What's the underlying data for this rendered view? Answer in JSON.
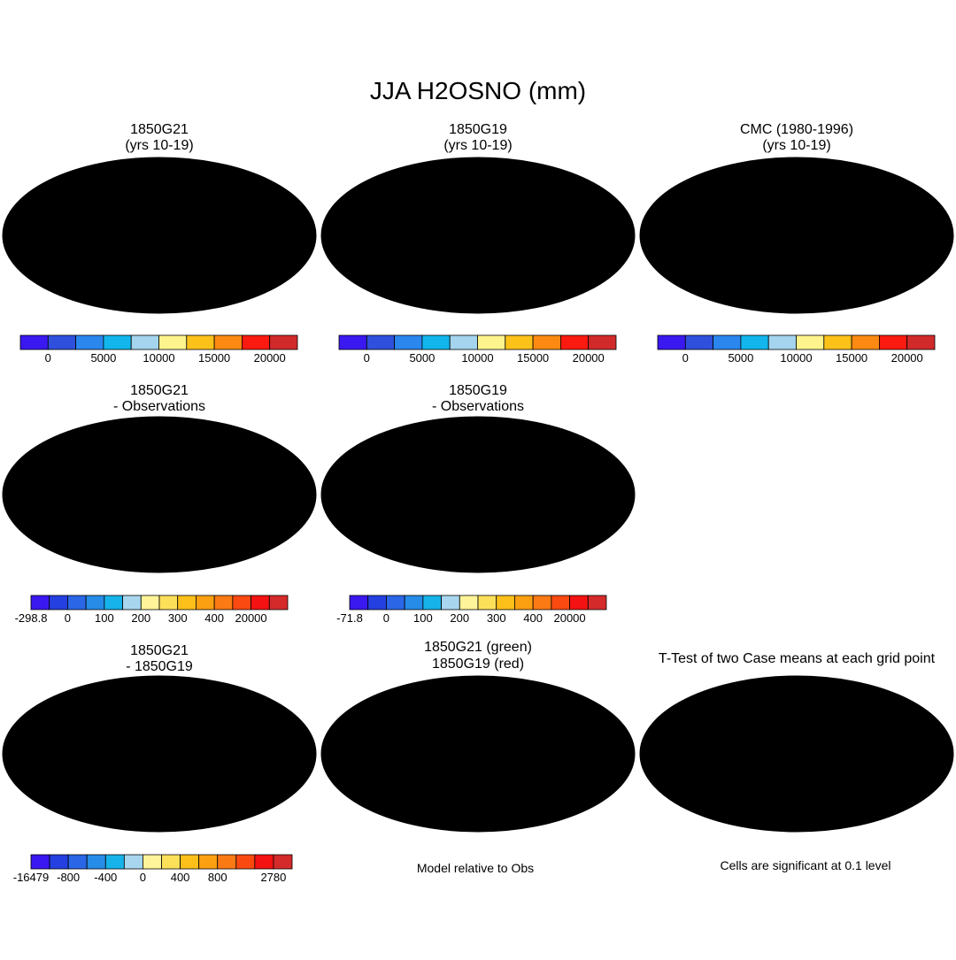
{
  "page_title": "JJA H2OSNO (mm)",
  "colors": {
    "ocean": "#ffffff",
    "land_outline": "#000000",
    "blue_fill": "#3355dd",
    "red_fill": "#d33030",
    "pale_yellow": "#fff4a0",
    "light_blue": "#aed6ec",
    "sig_red": "#ee1111",
    "green": "#22cc22"
  },
  "chart_data": [
    {
      "id": "p1",
      "type": "map",
      "projection": "robinson",
      "title": [
        "1850G21",
        "(yrs 10-19)"
      ],
      "fill": "snow_all",
      "colorbar": "cb_abs"
    },
    {
      "id": "p2",
      "type": "map",
      "projection": "robinson",
      "title": [
        "1850G19",
        "(yrs 10-19)"
      ],
      "fill": "snow_all",
      "colorbar": "cb_abs"
    },
    {
      "id": "p3",
      "type": "map",
      "projection": "robinson",
      "title": [
        "CMC (1980-1996)",
        "(yrs 10-19)"
      ],
      "fill": "north_america_only",
      "colorbar": "cb_abs"
    },
    {
      "id": "p4",
      "type": "map",
      "projection": "robinson",
      "title": [
        "1850G21",
        "- Observations"
      ],
      "fill": "diff_obs",
      "colorbar": "cb_diff1"
    },
    {
      "id": "p5",
      "type": "map",
      "projection": "robinson",
      "title": [
        "1850G19",
        "- Observations"
      ],
      "fill": "diff_obs",
      "colorbar": "cb_diff2"
    },
    {
      "id": "p6",
      "type": "map",
      "projection": "robinson",
      "title": [
        "1850G21",
        "- 1850G19"
      ],
      "fill": "diff_models",
      "colorbar": "cb_diff3"
    },
    {
      "id": "p7",
      "type": "map",
      "projection": "robinson",
      "title": [
        "1850G21 (green)",
        "1850G19 (red)"
      ],
      "fill": "contours",
      "caption": "Model relative to Obs"
    },
    {
      "id": "p8",
      "type": "map",
      "projection": "robinson",
      "title": [
        "T-Test of two Case means at each grid point"
      ],
      "fill": "ttest",
      "caption": "Cells are significant at 0.1 level"
    }
  ],
  "colorbars": {
    "cb_abs": {
      "colors": [
        "#3a18f0",
        "#2f50dd",
        "#2b86ee",
        "#12b6ec",
        "#a4d4ee",
        "#fdf48d",
        "#fdc21a",
        "#fc8a12",
        "#fa1a10",
        "#d12a2a"
      ],
      "labels": [
        "0",
        "5000",
        "10000",
        "15000",
        "20000"
      ],
      "label_boundaries": [
        1,
        3,
        5,
        7,
        9
      ]
    },
    "cb_diff1": {
      "colors": [
        "#3a18f0",
        "#2440e0",
        "#2a66e6",
        "#268ce8",
        "#16b2ea",
        "#a8d6ee",
        "#fff49a",
        "#fde05a",
        "#fdc01a",
        "#fca012",
        "#fb7a14",
        "#fa4a12",
        "#f41212",
        "#d42a2a"
      ],
      "labels": [
        "-298.8",
        "0",
        "100",
        "200",
        "300",
        "400",
        "20000"
      ],
      "label_boundaries": [
        0,
        2,
        4,
        6,
        8,
        10,
        12
      ]
    },
    "cb_diff2": {
      "colors": [
        "#3a18f0",
        "#2440e0",
        "#2a66e6",
        "#268ce8",
        "#16b2ea",
        "#a8d6ee",
        "#fff49a",
        "#fde05a",
        "#fdc01a",
        "#fca012",
        "#fb7a14",
        "#fa4a12",
        "#f41212",
        "#d42a2a"
      ],
      "labels": [
        "-71.8",
        "0",
        "100",
        "200",
        "300",
        "400",
        "20000"
      ],
      "label_boundaries": [
        0,
        2,
        4,
        6,
        8,
        10,
        12
      ]
    },
    "cb_diff3": {
      "colors": [
        "#3a18f0",
        "#2440e0",
        "#2a66e6",
        "#268ce8",
        "#16b2ea",
        "#a8d6ee",
        "#fff49a",
        "#fde05a",
        "#fdc01a",
        "#fca012",
        "#fb7a14",
        "#fa4a12",
        "#f41212",
        "#d42a2a"
      ],
      "labels": [
        "-16479",
        "-800",
        "-400",
        "0",
        "400",
        "800",
        "2780"
      ],
      "label_boundaries": [
        0,
        2,
        4,
        6,
        8,
        10,
        13
      ]
    }
  }
}
